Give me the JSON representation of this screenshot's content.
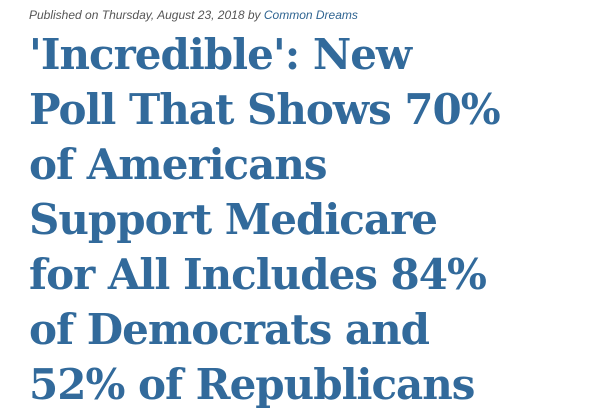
{
  "byline": {
    "prefix": "Published on",
    "date": "Thursday, August 23, 2018",
    "by": "by",
    "author": "Common Dreams"
  },
  "headline": {
    "lines": [
      "'Incredible': New",
      "Poll That Shows 70%",
      "of Americans",
      "Support Medicare",
      "for All Includes 84%",
      "of Democrats and",
      "52% of Republicans"
    ]
  },
  "colors": {
    "headline": "#326a9b",
    "author_link": "#2f6491",
    "byline_text": "#555555"
  }
}
